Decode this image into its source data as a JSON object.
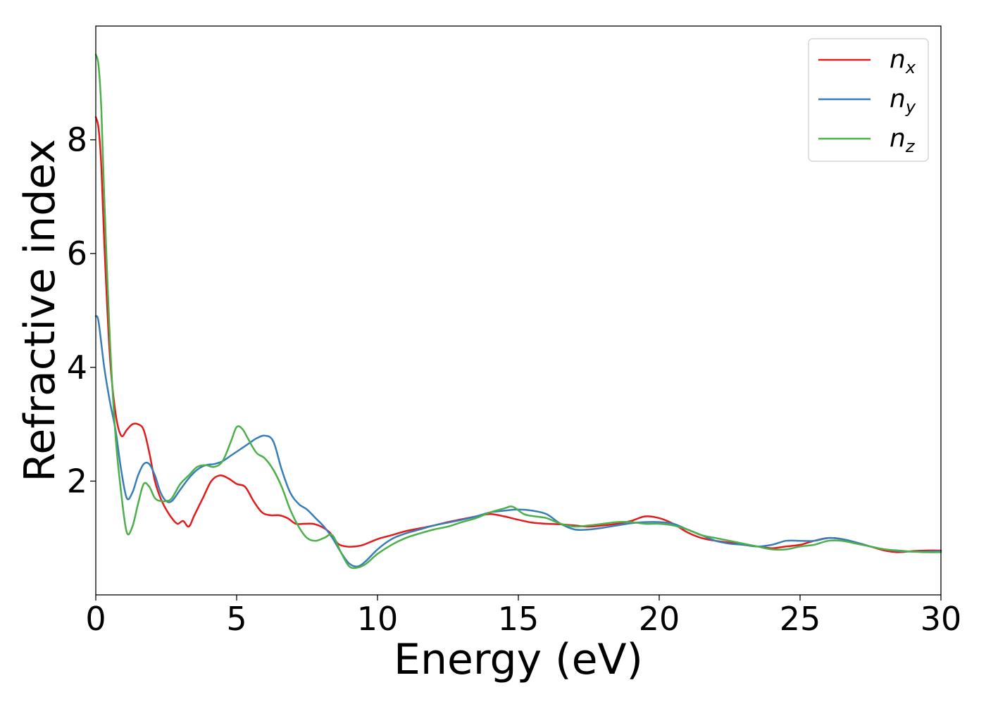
{
  "chart_data": {
    "type": "line",
    "title": "",
    "xlabel": "Energy (eV)",
    "ylabel": "Refractive index",
    "xlim": [
      0,
      30
    ],
    "ylim": [
      0,
      10
    ],
    "xticks": [
      0,
      5,
      10,
      15,
      20,
      25,
      30
    ],
    "yticks": [
      2,
      4,
      6,
      8
    ],
    "grid": false,
    "legend_position": "top-right",
    "series": [
      {
        "name": "n",
        "subscript": "x",
        "color": "#e41a1c",
        "x": [
          0,
          0.1,
          0.2,
          0.3,
          0.5,
          0.7,
          0.9,
          1.1,
          1.3,
          1.5,
          1.7,
          1.9,
          2.1,
          2.3,
          2.5,
          2.7,
          2.9,
          3.1,
          3.3,
          3.5,
          3.8,
          4.1,
          4.4,
          4.7,
          5.0,
          5.3,
          5.6,
          5.9,
          6.2,
          6.5,
          6.8,
          7.1,
          7.4,
          7.7,
          8.0,
          8.3,
          8.6,
          8.9,
          9.2,
          9.5,
          10.0,
          10.5,
          11.0,
          11.5,
          12.0,
          12.5,
          13.0,
          13.5,
          14.0,
          14.5,
          15.0,
          15.5,
          16.0,
          16.5,
          17.0,
          17.5,
          18.0,
          18.5,
          19.0,
          19.5,
          20.0,
          20.5,
          21.0,
          21.5,
          22.0,
          22.5,
          23.0,
          23.5,
          24.0,
          24.5,
          25.0,
          25.5,
          26.0,
          26.5,
          27.0,
          27.5,
          28.0,
          28.5,
          29.0,
          29.5,
          30.0
        ],
        "y": [
          8.4,
          8.2,
          7.5,
          6.2,
          4.2,
          3.2,
          2.8,
          2.9,
          3.0,
          3.0,
          2.9,
          2.5,
          2.0,
          1.7,
          1.5,
          1.35,
          1.25,
          1.3,
          1.2,
          1.4,
          1.7,
          2.0,
          2.1,
          2.05,
          1.95,
          1.9,
          1.65,
          1.45,
          1.4,
          1.4,
          1.35,
          1.25,
          1.25,
          1.25,
          1.2,
          1.1,
          0.9,
          0.85,
          0.85,
          0.88,
          0.98,
          1.05,
          1.12,
          1.17,
          1.22,
          1.28,
          1.33,
          1.38,
          1.42,
          1.38,
          1.32,
          1.27,
          1.25,
          1.24,
          1.22,
          1.2,
          1.22,
          1.25,
          1.3,
          1.38,
          1.35,
          1.25,
          1.1,
          1.0,
          0.95,
          0.92,
          0.88,
          0.85,
          0.82,
          0.85,
          0.88,
          0.95,
          1.0,
          0.98,
          0.92,
          0.85,
          0.78,
          0.75,
          0.77,
          0.78,
          0.78
        ]
      },
      {
        "name": "n",
        "subscript": "y",
        "color": "#377eb8",
        "x": [
          0,
          0.1,
          0.3,
          0.5,
          0.7,
          0.9,
          1.1,
          1.3,
          1.5,
          1.7,
          1.9,
          2.1,
          2.3,
          2.5,
          2.7,
          3.0,
          3.3,
          3.6,
          3.9,
          4.2,
          4.5,
          4.8,
          5.1,
          5.4,
          5.7,
          6.0,
          6.3,
          6.6,
          6.9,
          7.2,
          7.5,
          7.8,
          8.1,
          8.4,
          8.7,
          9.0,
          9.3,
          9.6,
          10.0,
          10.5,
          11.0,
          11.5,
          12.0,
          12.5,
          13.0,
          13.5,
          14.0,
          14.5,
          15.0,
          15.5,
          16.0,
          16.5,
          17.0,
          17.5,
          18.0,
          18.5,
          19.0,
          19.5,
          20.0,
          20.5,
          21.0,
          21.5,
          22.0,
          22.5,
          23.0,
          23.5,
          24.0,
          24.5,
          25.0,
          25.5,
          26.0,
          26.5,
          27.0,
          27.5,
          28.0,
          28.5,
          29.0,
          29.5,
          30.0
        ],
        "y": [
          4.9,
          4.8,
          4.0,
          3.4,
          2.9,
          2.2,
          1.7,
          1.8,
          2.1,
          2.3,
          2.3,
          2.1,
          1.8,
          1.65,
          1.65,
          1.85,
          2.05,
          2.2,
          2.28,
          2.3,
          2.35,
          2.45,
          2.55,
          2.65,
          2.75,
          2.8,
          2.7,
          2.2,
          1.8,
          1.6,
          1.5,
          1.35,
          1.2,
          1.0,
          0.75,
          0.55,
          0.5,
          0.6,
          0.8,
          0.98,
          1.08,
          1.15,
          1.22,
          1.27,
          1.32,
          1.38,
          1.45,
          1.48,
          1.5,
          1.48,
          1.42,
          1.25,
          1.15,
          1.15,
          1.18,
          1.22,
          1.26,
          1.28,
          1.28,
          1.25,
          1.15,
          1.05,
          0.95,
          0.9,
          0.88,
          0.85,
          0.88,
          0.95,
          0.95,
          0.95,
          1.0,
          0.98,
          0.92,
          0.85,
          0.8,
          0.77,
          0.76,
          0.76,
          0.77
        ]
      },
      {
        "name": "n",
        "subscript": "z",
        "color": "#4daf4a",
        "x": [
          0,
          0.1,
          0.2,
          0.3,
          0.5,
          0.7,
          0.9,
          1.1,
          1.3,
          1.5,
          1.7,
          1.9,
          2.1,
          2.3,
          2.5,
          2.7,
          3.0,
          3.3,
          3.6,
          3.9,
          4.2,
          4.5,
          4.8,
          5.0,
          5.2,
          5.4,
          5.7,
          6.0,
          6.3,
          6.6,
          6.9,
          7.2,
          7.5,
          7.8,
          8.1,
          8.4,
          8.7,
          9.0,
          9.3,
          9.6,
          10.0,
          10.5,
          11.0,
          11.5,
          12.0,
          12.5,
          13.0,
          13.5,
          14.0,
          14.5,
          14.8,
          15.2,
          15.6,
          16.0,
          16.5,
          17.0,
          17.5,
          18.0,
          18.5,
          19.0,
          19.5,
          20.0,
          20.5,
          21.0,
          21.5,
          22.0,
          22.5,
          23.0,
          23.5,
          24.0,
          24.5,
          25.0,
          25.5,
          26.0,
          26.5,
          27.0,
          27.5,
          28.0,
          28.5,
          29.0,
          29.5,
          30.0
        ],
        "y": [
          9.5,
          9.3,
          8.5,
          7.0,
          4.5,
          2.8,
          1.8,
          1.1,
          1.2,
          1.6,
          1.95,
          1.9,
          1.7,
          1.65,
          1.65,
          1.7,
          1.95,
          2.1,
          2.25,
          2.28,
          2.25,
          2.35,
          2.7,
          2.95,
          2.92,
          2.75,
          2.5,
          2.4,
          2.2,
          1.9,
          1.5,
          1.2,
          1.0,
          0.95,
          1.0,
          1.05,
          0.75,
          0.5,
          0.48,
          0.55,
          0.72,
          0.88,
          1.0,
          1.08,
          1.15,
          1.2,
          1.28,
          1.35,
          1.45,
          1.52,
          1.55,
          1.42,
          1.38,
          1.35,
          1.25,
          1.2,
          1.22,
          1.25,
          1.28,
          1.28,
          1.25,
          1.25,
          1.22,
          1.15,
          1.05,
          1.0,
          0.95,
          0.9,
          0.85,
          0.8,
          0.8,
          0.85,
          0.88,
          0.95,
          0.95,
          0.9,
          0.85,
          0.8,
          0.78,
          0.76,
          0.75,
          0.75
        ]
      }
    ]
  }
}
